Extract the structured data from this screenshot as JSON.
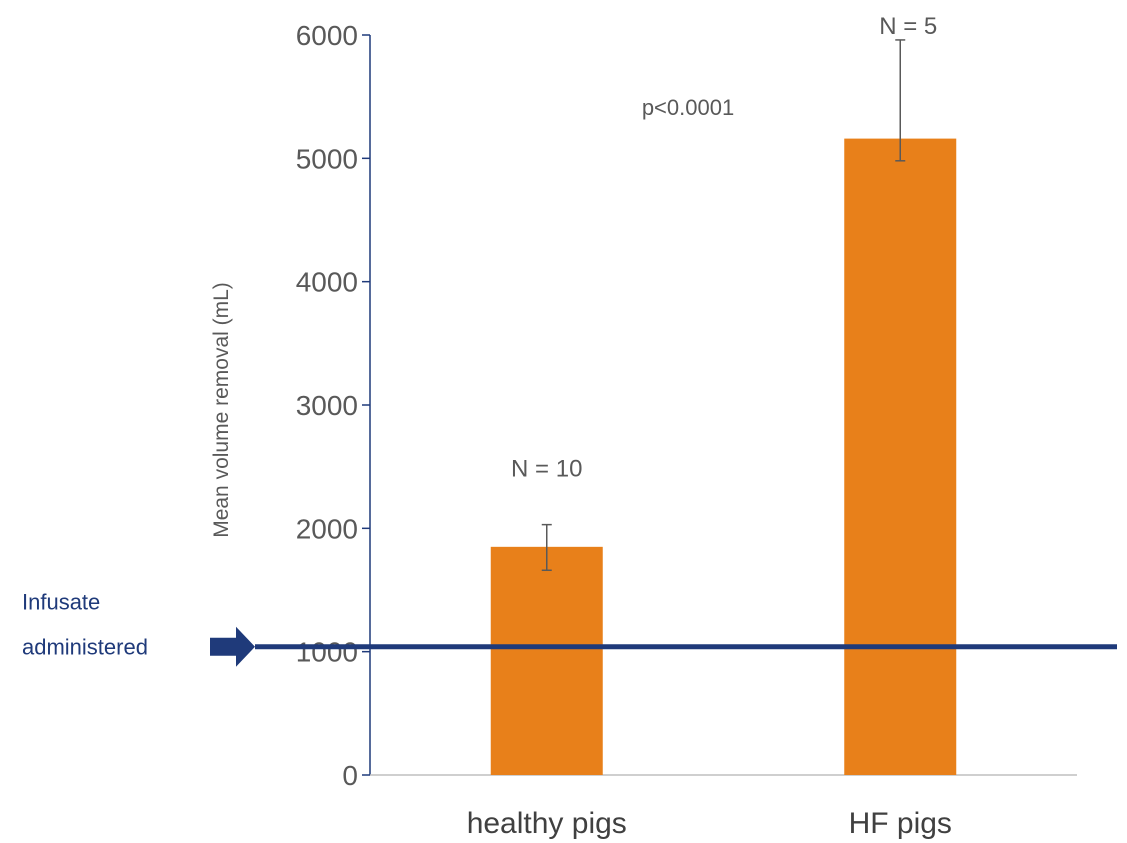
{
  "chart_data": {
    "type": "bar",
    "categories": [
      "healthy pigs",
      "HF pigs"
    ],
    "values": [
      1850,
      5160
    ],
    "error_bars": [
      {
        "lower": 1660,
        "upper": 2030
      },
      {
        "lower": 4980,
        "upper": 5960
      }
    ],
    "ylabel": "Mean volume removal (mL)",
    "ylim": [
      0,
      6000
    ],
    "yticks": [
      0,
      1000,
      2000,
      3000,
      4000,
      5000,
      6000
    ],
    "grid": false,
    "bar_color": "#E8801A",
    "error_bar_color": "#595959",
    "bar_labels": [
      "N = 10",
      "N = 5"
    ],
    "annotation": "p<0.0001",
    "reference_line": {
      "value": 1040,
      "color": "#1F3A7A",
      "label_lines": [
        "Infusate",
        "administered"
      ]
    }
  }
}
